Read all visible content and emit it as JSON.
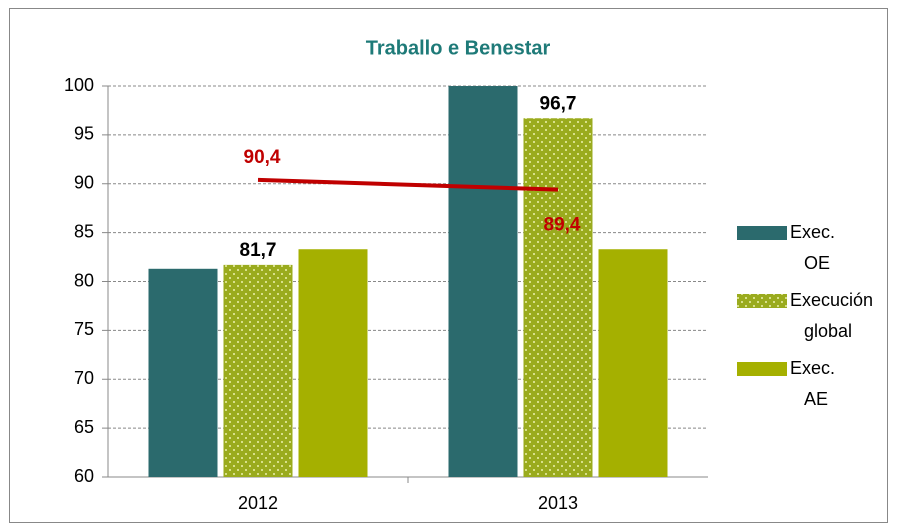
{
  "chart_data": {
    "type": "bar",
    "title": "Traballo e Benestar",
    "categories": [
      "2012",
      "2013"
    ],
    "series": [
      {
        "name": "Exec. OE",
        "color": "#2b6a6d",
        "values": [
          81.3,
          100
        ]
      },
      {
        "name": "Execución global",
        "color": "#9aab1e",
        "pattern": "dots",
        "values": [
          81.7,
          96.7
        ],
        "value_labels": [
          "81,7",
          "96,7"
        ]
      },
      {
        "name": "Exec. AE",
        "color": "#a5b000",
        "values": [
          83.3,
          83.3
        ]
      },
      {
        "type": "line",
        "color": "#c00000",
        "values": [
          90.4,
          89.4
        ],
        "value_labels": [
          "90,4",
          "89,4"
        ]
      }
    ],
    "ylim": [
      60,
      100
    ],
    "yticks": [
      60,
      65,
      70,
      75,
      80,
      85,
      90,
      95,
      100
    ],
    "grid": true,
    "legend": "right"
  }
}
